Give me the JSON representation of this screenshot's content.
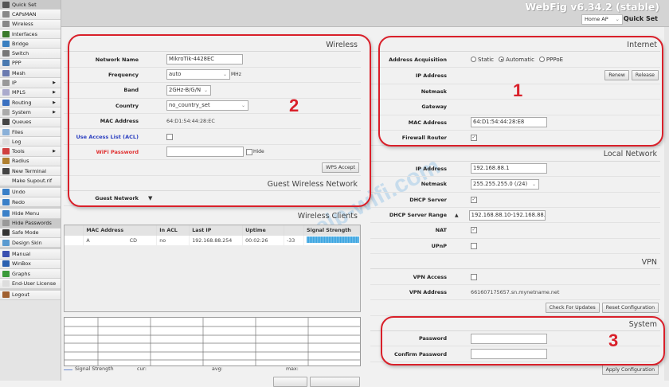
{
  "app_title": "WebFig v6.34.2 (stable)",
  "mode_select": {
    "value": "Home AP",
    "label": "Quick Set"
  },
  "sidebar": {
    "items": [
      {
        "label": "Quick Set",
        "icon": "quick-set-icon",
        "color": "#555",
        "selected": true
      },
      {
        "label": "CAPsMAN",
        "icon": "antenna-icon",
        "color": "#888"
      },
      {
        "label": "Wireless",
        "icon": "antenna-icon",
        "color": "#888"
      },
      {
        "label": "Interfaces",
        "icon": "interfaces-icon",
        "color": "#3a7a2a"
      },
      {
        "label": "Bridge",
        "icon": "bridge-icon",
        "color": "#3a7fc0"
      },
      {
        "label": "Switch",
        "icon": "switch-icon",
        "color": "#777"
      },
      {
        "label": "PPP",
        "icon": "ppp-icon",
        "color": "#4a7ab0"
      },
      {
        "label": "Mesh",
        "icon": "mesh-icon",
        "color": "#6a7ab0"
      },
      {
        "label": "IP",
        "icon": "ip-icon",
        "color": "#999",
        "submenu": true
      },
      {
        "label": "MPLS",
        "icon": "mpls-icon",
        "color": "#aac",
        "submenu": true
      },
      {
        "label": "Routing",
        "icon": "routing-icon",
        "color": "#3a70c0",
        "submenu": true
      },
      {
        "label": "System",
        "icon": "system-icon",
        "color": "#aaa",
        "submenu": true
      },
      {
        "label": "Queues",
        "icon": "queues-icon",
        "color": "#444"
      },
      {
        "label": "Files",
        "icon": "files-icon",
        "color": "#8ab0d8"
      },
      {
        "label": "Log",
        "icon": "log-icon",
        "color": "#ddd"
      },
      {
        "label": "Tools",
        "icon": "tools-icon",
        "color": "#d04040",
        "submenu": true
      },
      {
        "label": "Radius",
        "icon": "radius-icon",
        "color": "#b08030"
      },
      {
        "label": "New Terminal",
        "icon": "terminal-icon",
        "color": "#444"
      },
      {
        "label": "Make Supout.rif",
        "icon": "supout-icon",
        "color": "#eee",
        "gap_after": true
      },
      {
        "label": "Undo",
        "icon": "undo-icon",
        "color": "#3a80c8"
      },
      {
        "label": "Redo",
        "icon": "redo-icon",
        "color": "#3a80c8",
        "gap_after": true
      },
      {
        "label": "Hide Menu",
        "icon": "hide-menu-icon",
        "color": "#3a80c8"
      },
      {
        "label": "Hide Passwords",
        "icon": "hide-passwords-icon",
        "color": "#999",
        "selected": true
      },
      {
        "label": "Safe Mode",
        "icon": "umbrella-icon",
        "color": "#333"
      },
      {
        "label": "Design Skin",
        "icon": "design-skin-icon",
        "color": "#5a9ad0",
        "gap_after": true
      },
      {
        "label": "Manual",
        "icon": "help-icon",
        "color": "#3a50b0"
      },
      {
        "label": "WinBox",
        "icon": "winbox-icon",
        "color": "#2a60b0"
      },
      {
        "label": "Graphs",
        "icon": "graphs-icon",
        "color": "#3a9a3a"
      },
      {
        "label": "End-User License",
        "icon": "license-icon",
        "color": "#ddd",
        "gap_after": true
      },
      {
        "label": "Logout",
        "icon": "logout-icon",
        "color": "#a06030"
      }
    ]
  },
  "wireless": {
    "title": "Wireless",
    "network_name": {
      "label": "Network Name",
      "value": "MikroTik-4428EC"
    },
    "frequency": {
      "label": "Frequency",
      "value": "auto",
      "unit": "MHz"
    },
    "band": {
      "label": "Band",
      "value": "2GHz-B/G/N"
    },
    "country": {
      "label": "Country",
      "value": "no_country_set"
    },
    "mac": {
      "label": "MAC Address",
      "value": "64:D1:54:44:28:EC"
    },
    "acl": {
      "label": "Use Access List (ACL)",
      "checked": false
    },
    "wifi_password": {
      "label": "WiFi Password",
      "value": "",
      "hide_label": "Hide"
    },
    "wps_button": "WPS Accept",
    "guest_title": "Guest Wireless Network",
    "guest_network": {
      "label": "Guest Network"
    }
  },
  "clients": {
    "title": "Wireless Clients",
    "columns": [
      "",
      "MAC Address",
      "In ACL",
      "Last IP",
      "Uptime",
      "",
      "Signal Strength"
    ],
    "rows": [
      {
        "mac_start": "A",
        "mac_end": "CD",
        "in_acl": "no",
        "last_ip": "192.168.88.254",
        "uptime": "00:02:26",
        "signal": "-33"
      }
    ],
    "legend": {
      "series": "Signal Strength",
      "cur": "cur:",
      "avg": "avg:",
      "max": "max:"
    }
  },
  "internet": {
    "title": "Internet",
    "acquisition": {
      "label": "Address Acquisition",
      "options": [
        "Static",
        "Automatic",
        "PPPoE"
      ],
      "selected": "Automatic"
    },
    "ip": {
      "label": "IP Address",
      "renew": "Renew",
      "release": "Release"
    },
    "netmask": {
      "label": "Netmask"
    },
    "gateway": {
      "label": "Gateway"
    },
    "mac": {
      "label": "MAC Address",
      "value": "64:D1:54:44:28:E8"
    },
    "firewall": {
      "label": "Firewall Router",
      "checked": true
    }
  },
  "local": {
    "title": "Local Network",
    "ip": {
      "label": "IP Address",
      "value": "192.168.88.1"
    },
    "netmask": {
      "label": "Netmask",
      "value": "255.255.255.0 (/24)"
    },
    "dhcp": {
      "label": "DHCP Server",
      "checked": true
    },
    "range": {
      "label": "DHCP Server Range",
      "value": "192.168.88.10-192.168.88.2"
    },
    "nat": {
      "label": "NAT",
      "checked": true
    },
    "upnp": {
      "label": "UPnP",
      "checked": false
    }
  },
  "vpn": {
    "title": "VPN",
    "access": {
      "label": "VPN Access",
      "checked": false
    },
    "address": {
      "label": "VPN Address",
      "value": "661607175657.sn.mynetname.net"
    },
    "check_updates": "Check For Updates",
    "reset": "Reset Configuration"
  },
  "system": {
    "title": "System",
    "password": {
      "label": "Password",
      "value": ""
    },
    "confirm": {
      "label": "Confirm Password",
      "value": ""
    },
    "apply": "Apply Configuration"
  },
  "annotations": [
    "1",
    "2",
    "3"
  ],
  "watermark": "help-wifi.com",
  "colors": {
    "callout": "#d9202a",
    "signal": "#3aa4e0"
  }
}
